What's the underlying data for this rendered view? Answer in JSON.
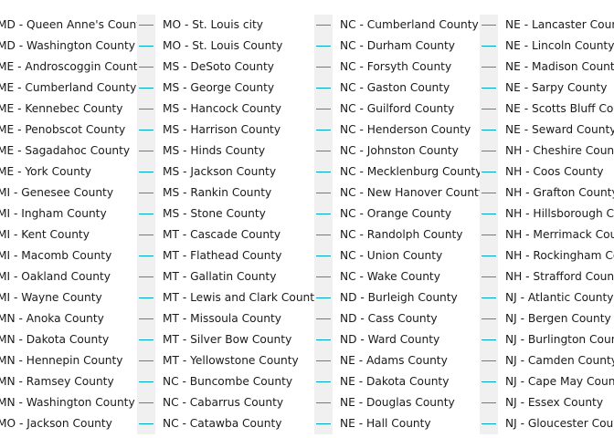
{
  "chart_data": {
    "type": "line",
    "legend_placement": "right",
    "series_color": "#00A7C5",
    "legend_columns": [
      [
        "MD - Queen Anne's County",
        "MD - Washington County",
        "ME - Androscoggin County",
        "ME - Cumberland County",
        "ME - Kennebec County",
        "ME - Penobscot County",
        "ME - Sagadahoc County",
        "ME - York County",
        "MI - Genesee County",
        "MI - Ingham County",
        "MI - Kent County",
        "MI - Macomb County",
        "MI - Oakland County",
        "MI - Wayne County",
        "MN - Anoka County",
        "MN - Dakota County",
        "MN - Hennepin County",
        "MN - Ramsey County",
        "MN - Washington County",
        "MO - Jackson County"
      ],
      [
        "MO - St. Louis city",
        "MO - St. Louis County",
        "MS - DeSoto County",
        "MS - George County",
        "MS - Hancock County",
        "MS - Harrison County",
        "MS - Hinds County",
        "MS - Jackson County",
        "MS - Rankin County",
        "MS - Stone County",
        "MT - Cascade County",
        "MT - Flathead County",
        "MT - Gallatin County",
        "MT - Lewis and Clark County",
        "MT - Missoula County",
        "MT - Silver Bow County",
        "MT - Yellowstone County",
        "NC - Buncombe County",
        "NC - Cabarrus County",
        "NC - Catawba County"
      ],
      [
        "NC - Cumberland County",
        "NC - Durham County",
        "NC - Forsyth County",
        "NC - Gaston County",
        "NC - Guilford County",
        "NC - Henderson County",
        "NC - Johnston County",
        "NC - Mecklenburg County",
        "NC - New Hanover County",
        "NC - Orange County",
        "NC - Randolph County",
        "NC - Union County",
        "NC - Wake County",
        "ND - Burleigh County",
        "ND - Cass County",
        "ND - Ward County",
        "NE - Adams County",
        "NE - Dakota County",
        "NE - Douglas County",
        "NE - Hall County"
      ],
      [
        "NE - Lancaster County",
        "NE - Lincoln County",
        "NE - Madison County",
        "NE - Sarpy County",
        "NE - Scotts Bluff County",
        "NE - Seward County",
        "NH - Cheshire County",
        "NH - Coos County",
        "NH - Grafton County",
        "NH - Hillsborough County",
        "NH - Merrimack County",
        "NH - Rockingham County",
        "NH - Strafford County",
        "NJ - Atlantic County",
        "NJ - Bergen County",
        "NJ - Burlington County",
        "NJ - Camden County",
        "NJ - Cape May County",
        "NJ - Essex County",
        "NJ - Gloucester County"
      ]
    ]
  }
}
